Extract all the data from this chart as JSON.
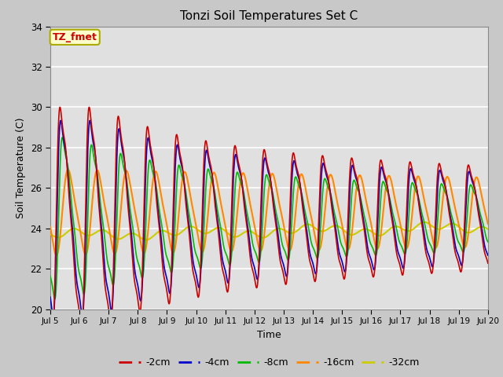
{
  "title": "Tonzi Soil Temperatures Set C",
  "xlabel": "Time",
  "ylabel": "Soil Temperature (C)",
  "ylim": [
    20,
    34
  ],
  "yticks": [
    20,
    22,
    24,
    26,
    28,
    30,
    32,
    34
  ],
  "xlim": [
    0,
    15
  ],
  "xtick_labels": [
    "Jul 5",
    "Jul 6",
    "Jul 7",
    "Jul 8",
    "Jul 9",
    "Jul 10",
    "Jul 11",
    "Jul 12",
    "Jul 13",
    "Jul 14",
    "Jul 15",
    "Jul 16",
    "Jul 17",
    "Jul 18",
    "Jul 19",
    "Jul 20"
  ],
  "xtick_positions": [
    0,
    1,
    2,
    3,
    4,
    5,
    6,
    7,
    8,
    9,
    10,
    11,
    12,
    13,
    14,
    15
  ],
  "series": {
    "-2cm": {
      "color": "#cc0000",
      "lw": 1.2
    },
    "-4cm": {
      "color": "#0000cc",
      "lw": 1.2
    },
    "-8cm": {
      "color": "#00bb00",
      "lw": 1.2
    },
    "-16cm": {
      "color": "#ff8800",
      "lw": 1.5
    },
    "-32cm": {
      "color": "#cccc00",
      "lw": 1.5
    }
  },
  "annotation_text": "TZ_fmet",
  "annotation_color": "#cc0000",
  "annotation_bg": "#ffffcc",
  "annotation_border": "#aaaa00",
  "fig_bg": "#c8c8c8",
  "plot_bg": "#e0e0e0",
  "grid_color": "#ffffff",
  "figsize": [
    6.4,
    4.8
  ],
  "dpi": 100
}
